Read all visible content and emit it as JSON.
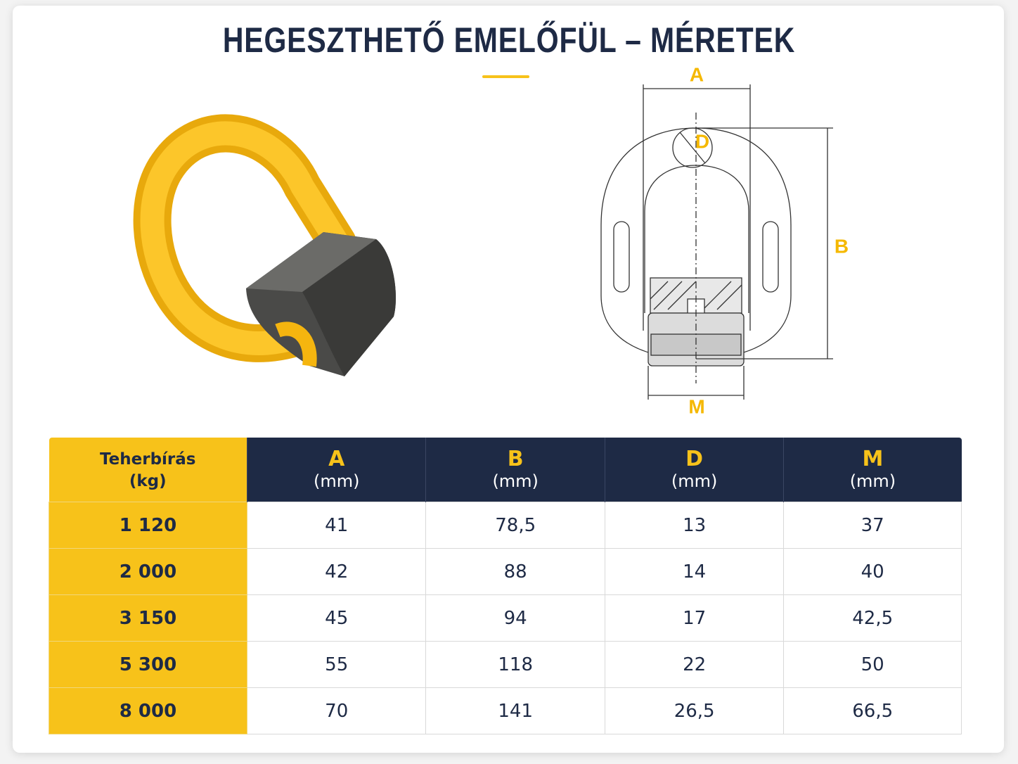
{
  "header": {
    "title": "HEGESZTHETŐ EMELŐFÜL – MÉRETEK"
  },
  "diagram": {
    "labels": {
      "a": "A",
      "b": "B",
      "d": "D",
      "m": "M"
    }
  },
  "table": {
    "columns": [
      {
        "name": "Teherbírás",
        "unit": "(kg)"
      },
      {
        "name": "A",
        "unit": "(mm)"
      },
      {
        "name": "B",
        "unit": "(mm)"
      },
      {
        "name": "D",
        "unit": "(mm)"
      },
      {
        "name": "M",
        "unit": "(mm)"
      }
    ],
    "rows": [
      [
        "1 120",
        "41",
        "78,5",
        "13",
        "37"
      ],
      [
        "2 000",
        "42",
        "88",
        "14",
        "40"
      ],
      [
        "3 150",
        "45",
        "94",
        "17",
        "42,5"
      ],
      [
        "5 300",
        "55",
        "118",
        "22",
        "50"
      ],
      [
        "8 000",
        "70",
        "141",
        "26,5",
        "66,5"
      ]
    ]
  }
}
